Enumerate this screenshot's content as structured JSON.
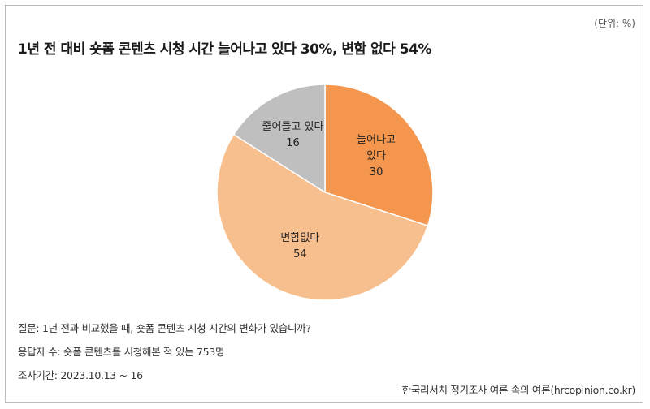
{
  "header": {
    "unit": "(단위: %)",
    "title": "1년 전 대비 숏폼 콘텐츠 시청 시간 늘어나고 있다 30%, 변함 없다 54%"
  },
  "chart_data": {
    "type": "pie",
    "title": "1년 전 대비 숏폼 콘텐츠 시청 시간 늘어나고 있다 30%, 변함 없다 54%",
    "slices": [
      {
        "label": "늘어나고 있다",
        "label_lines": [
          "늘어나고",
          "있다"
        ],
        "value": 30,
        "color": "#F4964D"
      },
      {
        "label": "변함없다",
        "label_lines": [
          "변함없다"
        ],
        "value": 54,
        "color": "#F7BE8E"
      },
      {
        "label": "줄어들고 있다",
        "label_lines": [
          "줄어들고 있다"
        ],
        "value": 16,
        "color": "#BFBFBF"
      }
    ]
  },
  "notes": {
    "question": "질문: 1년 전과 비교했을 때, 숏폼 콘텐츠 시청 시간의 변화가 있습니까?",
    "respondents": "응답자 수: 숏폼 콘텐츠를 시청해본 적 있는 753명",
    "period": "조사기간: 2023.10.13 ~ 16"
  },
  "source": "한국리서치 정기조사 여론 속의 여론(hrcopinion.co.kr)"
}
